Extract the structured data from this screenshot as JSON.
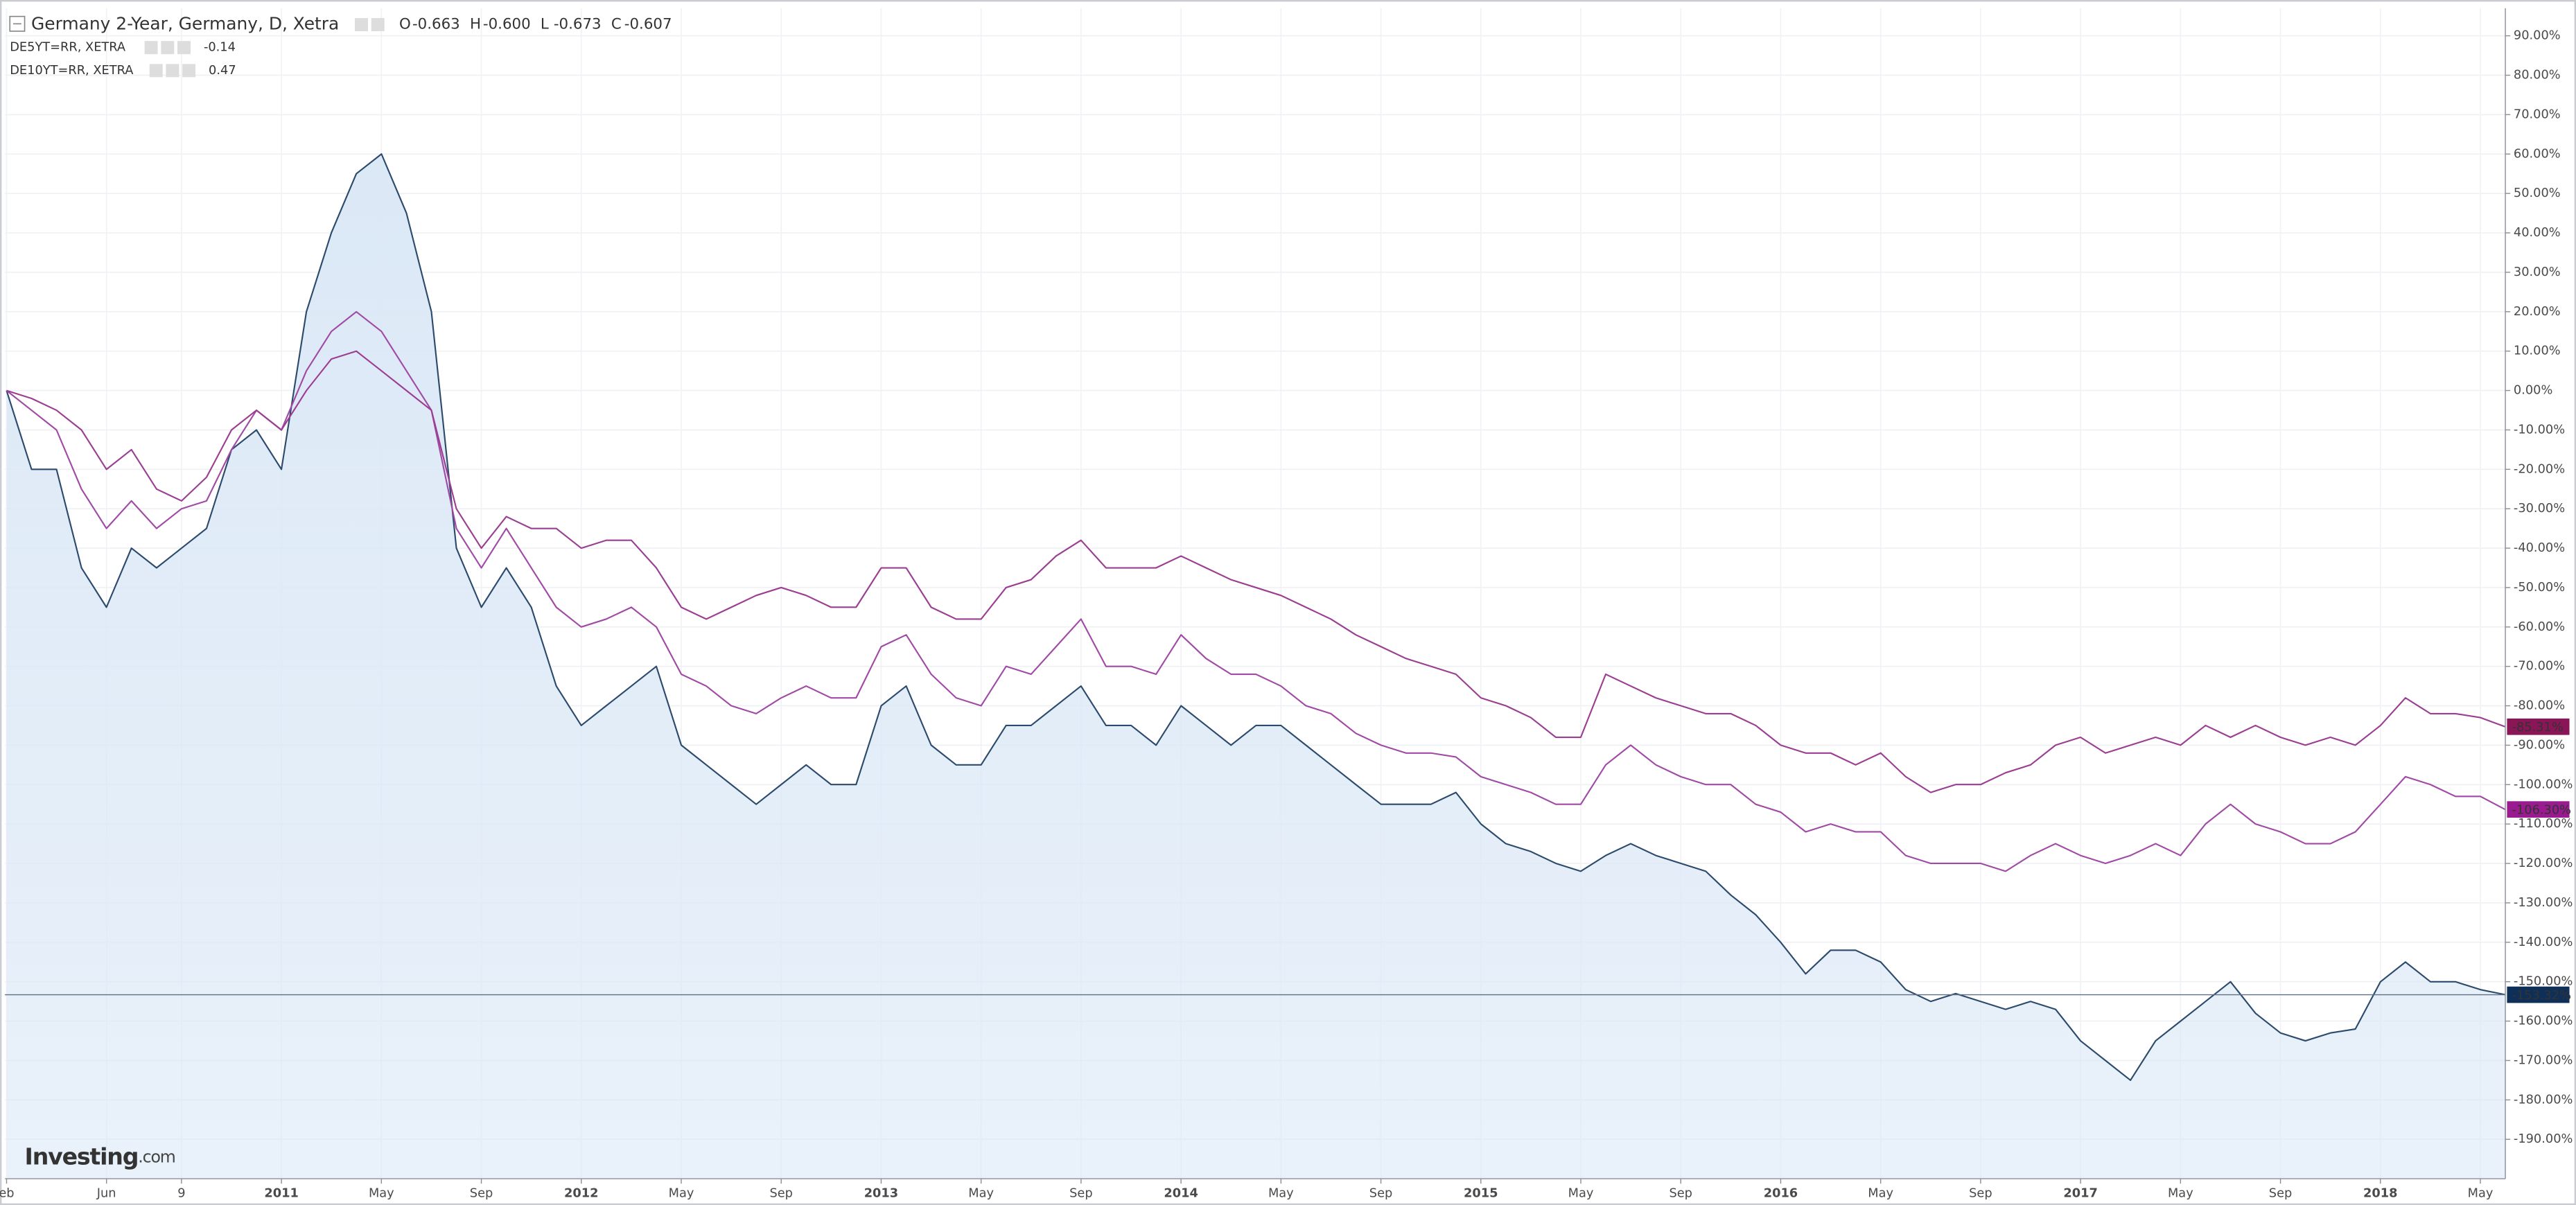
{
  "chart_data": {
    "type": "line",
    "title": "Germany 2-Year, Germany, D, Xetra",
    "ohlc": [
      {
        "label": "O",
        "value": "-0.663"
      },
      {
        "label": "H",
        "value": "-0.600"
      },
      {
        "label": "L",
        "value": "-0.673"
      },
      {
        "label": "C",
        "value": "-0.607"
      }
    ],
    "brand": {
      "main": "Investing",
      "suffix": ".com"
    },
    "x": [
      "2010-02",
      "2010-03",
      "2010-04",
      "2010-05",
      "2010-06",
      "2010-07",
      "2010-08",
      "2010-09",
      "2010-10",
      "2010-11",
      "2010-12",
      "2011-01",
      "2011-02",
      "2011-03",
      "2011-04",
      "2011-05",
      "2011-06",
      "2011-07",
      "2011-08",
      "2011-09",
      "2011-10",
      "2011-11",
      "2011-12",
      "2012-01",
      "2012-02",
      "2012-03",
      "2012-04",
      "2012-05",
      "2012-06",
      "2012-07",
      "2012-08",
      "2012-09",
      "2012-10",
      "2012-11",
      "2012-12",
      "2013-01",
      "2013-02",
      "2013-03",
      "2013-04",
      "2013-05",
      "2013-06",
      "2013-07",
      "2013-08",
      "2013-09",
      "2013-10",
      "2013-11",
      "2013-12",
      "2014-01",
      "2014-02",
      "2014-03",
      "2014-04",
      "2014-05",
      "2014-06",
      "2014-07",
      "2014-08",
      "2014-09",
      "2014-10",
      "2014-11",
      "2014-12",
      "2015-01",
      "2015-02",
      "2015-03",
      "2015-04",
      "2015-05",
      "2015-06",
      "2015-07",
      "2015-08",
      "2015-09",
      "2015-10",
      "2015-11",
      "2015-12",
      "2016-01",
      "2016-02",
      "2016-03",
      "2016-04",
      "2016-05",
      "2016-06",
      "2016-07",
      "2016-08",
      "2016-09",
      "2016-10",
      "2016-11",
      "2016-12",
      "2017-01",
      "2017-02",
      "2017-03",
      "2017-04",
      "2017-05",
      "2017-06",
      "2017-07",
      "2017-08",
      "2017-09",
      "2017-10",
      "2017-11",
      "2017-12",
      "2018-01",
      "2018-02",
      "2018-03",
      "2018-04",
      "2018-05",
      "2018-06"
    ],
    "series": [
      {
        "name": "Germany 2-Year, Germany, D, Xetra",
        "color": "#2c4a6b",
        "fill": "#dbe8f6",
        "tag_color": "#0e2f57",
        "last_label": "-153.32%",
        "values": [
          0,
          -20,
          -20,
          -45,
          -55,
          -40,
          -45,
          -40,
          -35,
          -15,
          -10,
          -20,
          20,
          40,
          55,
          60,
          45,
          20,
          -40,
          -55,
          -45,
          -55,
          -75,
          -85,
          -80,
          -75,
          -70,
          -90,
          -95,
          -100,
          -105,
          -100,
          -95,
          -100,
          -100,
          -80,
          -75,
          -90,
          -95,
          -95,
          -85,
          -85,
          -80,
          -75,
          -85,
          -85,
          -90,
          -80,
          -85,
          -90,
          -85,
          -85,
          -90,
          -95,
          -100,
          -105,
          -105,
          -105,
          -102,
          -110,
          -115,
          -117,
          -120,
          -122,
          -118,
          -115,
          -118,
          -120,
          -122,
          -128,
          -133,
          -140,
          -148,
          -142,
          -142,
          -145,
          -152,
          -155,
          -153,
          -155,
          -157,
          -155,
          -157,
          -165,
          -170,
          -175,
          -165,
          -160,
          -155,
          -150,
          -158,
          -163,
          -165,
          -163,
          -162,
          -150,
          -145,
          -150,
          -150,
          -152,
          -153.32
        ]
      },
      {
        "name": "DE5YT=RR, XETRA",
        "last": "-0.14",
        "color": "#a04aa6",
        "tag_color": "#9a1a8f",
        "last_label": "-106.30%",
        "values": [
          0,
          -5,
          -10,
          -25,
          -35,
          -28,
          -35,
          -30,
          -28,
          -15,
          -5,
          -10,
          5,
          15,
          20,
          15,
          5,
          -5,
          -35,
          -45,
          -35,
          -45,
          -55,
          -60,
          -58,
          -55,
          -60,
          -72,
          -75,
          -80,
          -82,
          -78,
          -75,
          -78,
          -78,
          -65,
          -62,
          -72,
          -78,
          -80,
          -70,
          -72,
          -65,
          -58,
          -70,
          -70,
          -72,
          -62,
          -68,
          -72,
          -72,
          -75,
          -80,
          -82,
          -87,
          -90,
          -92,
          -92,
          -93,
          -98,
          -100,
          -102,
          -105,
          -105,
          -95,
          -90,
          -95,
          -98,
          -100,
          -100,
          -105,
          -107,
          -112,
          -110,
          -112,
          -112,
          -118,
          -120,
          -120,
          -120,
          -122,
          -118,
          -115,
          -118,
          -120,
          -118,
          -115,
          -118,
          -110,
          -105,
          -110,
          -112,
          -115,
          -115,
          -112,
          -105,
          -98,
          -100,
          -103,
          -103,
          -106.3
        ]
      },
      {
        "name": "DE10YT=RR, XETRA",
        "last": "0.47",
        "color": "#9b3e92",
        "tag_color": "#8a1658",
        "last_label": "-85.31%",
        "values": [
          0,
          -2,
          -5,
          -10,
          -20,
          -15,
          -25,
          -28,
          -22,
          -10,
          -5,
          -10,
          0,
          8,
          10,
          5,
          0,
          -5,
          -30,
          -40,
          -32,
          -35,
          -35,
          -40,
          -38,
          -38,
          -45,
          -55,
          -58,
          -55,
          -52,
          -50,
          -52,
          -55,
          -55,
          -45,
          -45,
          -55,
          -58,
          -58,
          -50,
          -48,
          -42,
          -38,
          -45,
          -45,
          -45,
          -42,
          -45,
          -48,
          -50,
          -52,
          -55,
          -58,
          -62,
          -65,
          -68,
          -70,
          -72,
          -78,
          -80,
          -83,
          -88,
          -88,
          -72,
          -75,
          -78,
          -80,
          -82,
          -82,
          -85,
          -90,
          -92,
          -92,
          -95,
          -92,
          -98,
          -102,
          -100,
          -100,
          -97,
          -95,
          -90,
          -88,
          -92,
          -90,
          -88,
          -90,
          -85,
          -88,
          -85,
          -88,
          -90,
          -88,
          -90,
          -85,
          -78,
          -82,
          -82,
          -83,
          -85.31
        ]
      }
    ],
    "xlim": [
      "2010-02",
      "2018-06"
    ],
    "xticks": [
      {
        "value": "2010-02",
        "label": "eb"
      },
      {
        "value": "2010-06",
        "label": "Jun"
      },
      {
        "value": "2010-09",
        "label": "9"
      },
      {
        "value": "2011-01",
        "label": "2011"
      },
      {
        "value": "2011-05",
        "label": "May"
      },
      {
        "value": "2011-09",
        "label": "Sep"
      },
      {
        "value": "2012-01",
        "label": "2012"
      },
      {
        "value": "2012-05",
        "label": "May"
      },
      {
        "value": "2012-09",
        "label": "Sep"
      },
      {
        "value": "2013-01",
        "label": "2013"
      },
      {
        "value": "2013-05",
        "label": "May"
      },
      {
        "value": "2013-09",
        "label": "Sep"
      },
      {
        "value": "2014-01",
        "label": "2014"
      },
      {
        "value": "2014-05",
        "label": "May"
      },
      {
        "value": "2014-09",
        "label": "Sep"
      },
      {
        "value": "2015-01",
        "label": "2015"
      },
      {
        "value": "2015-05",
        "label": "May"
      },
      {
        "value": "2015-09",
        "label": "Sep"
      },
      {
        "value": "2016-01",
        "label": "2016"
      },
      {
        "value": "2016-05",
        "label": "May"
      },
      {
        "value": "2016-09",
        "label": "Sep"
      },
      {
        "value": "2017-01",
        "label": "2017"
      },
      {
        "value": "2017-05",
        "label": "May"
      },
      {
        "value": "2017-09",
        "label": "Sep"
      },
      {
        "value": "2018-01",
        "label": "2018"
      },
      {
        "value": "2018-05",
        "label": "May"
      }
    ],
    "ylim": [
      -200,
      97
    ],
    "yticks": [
      {
        "value": 90,
        "label": "90.00%"
      },
      {
        "value": 80,
        "label": "80.00%"
      },
      {
        "value": 70,
        "label": "70.00%"
      },
      {
        "value": 60,
        "label": "60.00%"
      },
      {
        "value": 50,
        "label": "50.00%"
      },
      {
        "value": 40,
        "label": "40.00%"
      },
      {
        "value": 30,
        "label": "30.00%"
      },
      {
        "value": 20,
        "label": "20.00%"
      },
      {
        "value": 10,
        "label": "10.00%"
      },
      {
        "value": 0,
        "label": "0.00%"
      },
      {
        "value": -10,
        "label": "-10.00%"
      },
      {
        "value": -20,
        "label": "-20.00%"
      },
      {
        "value": -30,
        "label": "-30.00%"
      },
      {
        "value": -40,
        "label": "-40.00%"
      },
      {
        "value": -50,
        "label": "-50.00%"
      },
      {
        "value": -60,
        "label": "-60.00%"
      },
      {
        "value": -70,
        "label": "-70.00%"
      },
      {
        "value": -80,
        "label": "-80.00%"
      },
      {
        "value": -90,
        "label": "-90.00%"
      },
      {
        "value": -100,
        "label": "-100.00%"
      },
      {
        "value": -110,
        "label": "-110.00%"
      },
      {
        "value": -120,
        "label": "-120.00%"
      },
      {
        "value": -130,
        "label": "-130.00%"
      },
      {
        "value": -140,
        "label": "-140.00%"
      },
      {
        "value": -150,
        "label": "-150.00%"
      },
      {
        "value": -160,
        "label": "-160.00%"
      },
      {
        "value": -170,
        "label": "-170.00%"
      },
      {
        "value": -180,
        "label": "-180.00%"
      },
      {
        "value": -190,
        "label": "-190.00%"
      }
    ],
    "grid": true
  }
}
